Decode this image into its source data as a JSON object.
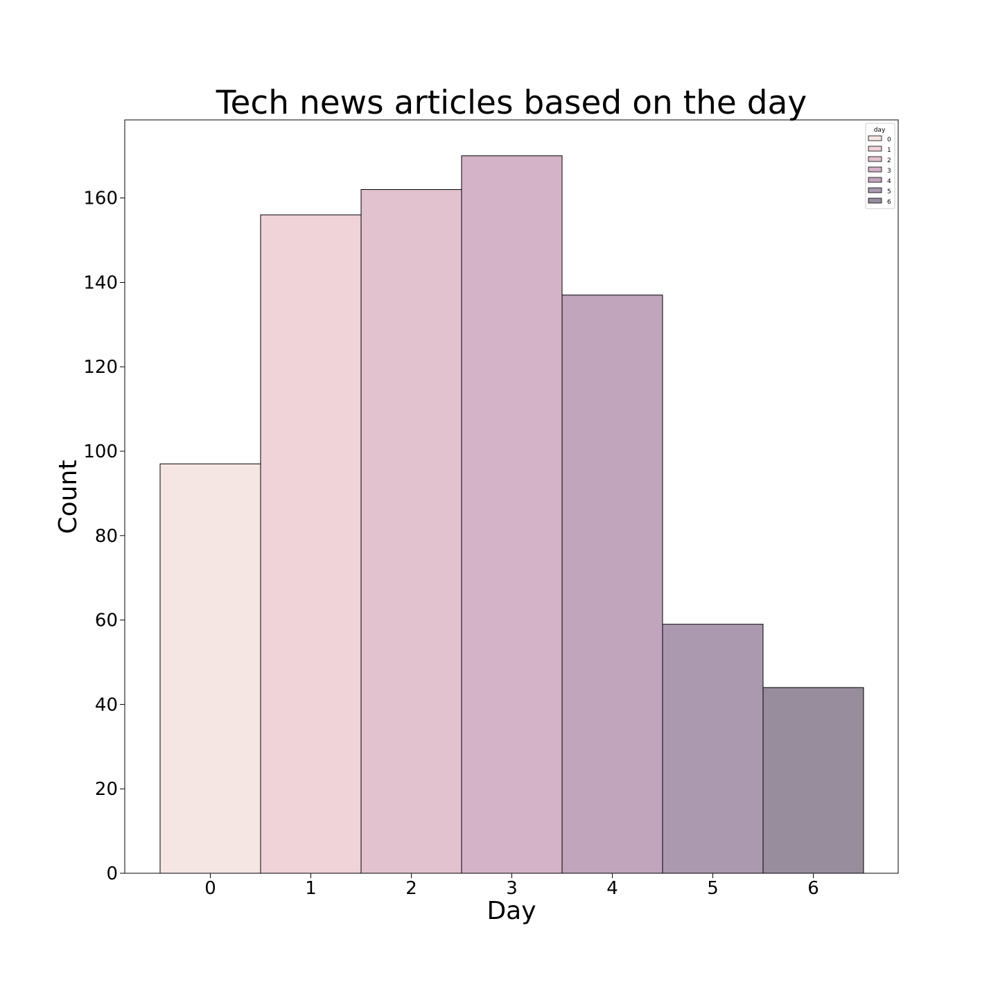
{
  "chart_data": {
    "type": "bar",
    "title": "Tech news articles based on the day",
    "xlabel": "Day",
    "ylabel": "Count",
    "categories": [
      "0",
      "1",
      "2",
      "3",
      "4",
      "5",
      "6"
    ],
    "values": [
      97,
      156,
      162,
      170,
      137,
      59,
      44
    ],
    "ylim": [
      0,
      178.5
    ],
    "yticks": [
      0,
      20,
      40,
      60,
      80,
      100,
      120,
      140,
      160
    ],
    "grid": false,
    "legend": {
      "title": "day",
      "placement": "top-right",
      "entries": [
        "0",
        "1",
        "2",
        "3",
        "4",
        "5",
        "6"
      ]
    },
    "colors": [
      "#f5e6e4",
      "#efd3d8",
      "#e2c2cf",
      "#d4b3c8",
      "#c0a5bd",
      "#ab99b0",
      "#978d9d"
    ],
    "edge_color": "#000000"
  }
}
